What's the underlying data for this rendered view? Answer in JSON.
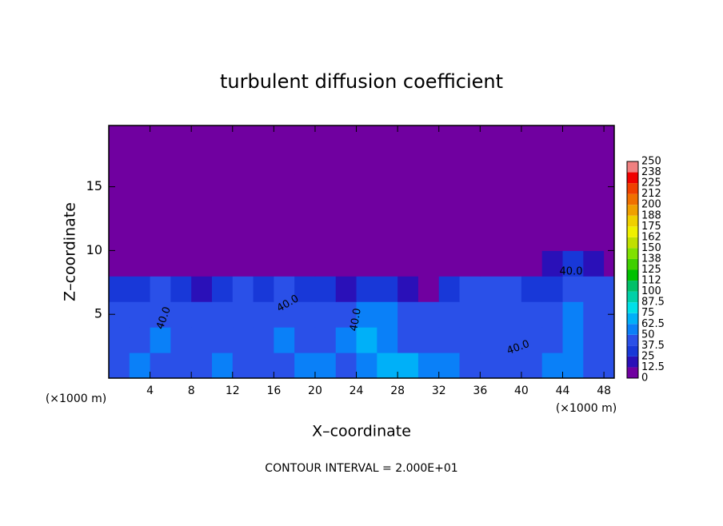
{
  "chart_data": {
    "type": "heatmap",
    "title": "turbulent diffusion coefficient",
    "xlabel": "X–coordinate",
    "ylabel": "Z–coordinate",
    "x_unit": "(×1000 m)",
    "footnote": "CONTOUR INTERVAL = 2.000E+01",
    "contour_labels": [
      "40.0",
      "40.0",
      "40.0",
      "40.0",
      "40.0"
    ],
    "xlim": [
      0,
      49
    ],
    "ylim": [
      0,
      19.8
    ],
    "xticks": [
      4,
      8,
      12,
      16,
      20,
      24,
      28,
      32,
      36,
      40,
      44,
      48
    ],
    "yticks": [
      5,
      10,
      15
    ],
    "x": [
      1,
      3,
      5,
      7,
      9,
      11,
      13,
      15,
      17,
      19,
      21,
      23,
      25,
      27,
      29,
      31,
      33,
      35,
      37,
      39,
      41,
      43,
      45,
      47,
      49
    ],
    "y": [
      1,
      3,
      5,
      7,
      9,
      11,
      13,
      15,
      17,
      19
    ],
    "z": [
      [
        45,
        50,
        45,
        40,
        48,
        55,
        45,
        40,
        45,
        50,
        52,
        48,
        60,
        70,
        65,
        55,
        50,
        45,
        48,
        45,
        42,
        55,
        60,
        45,
        48
      ],
      [
        40,
        45,
        55,
        45,
        42,
        48,
        40,
        45,
        50,
        45,
        42,
        50,
        65,
        60,
        45,
        40,
        45,
        42,
        40,
        45,
        48,
        45,
        55,
        42,
        45
      ],
      [
        38,
        45,
        40,
        42,
        48,
        40,
        45,
        42,
        45,
        40,
        45,
        42,
        55,
        50,
        45,
        40,
        45,
        40,
        45,
        42,
        45,
        40,
        50,
        42,
        45
      ],
      [
        35,
        30,
        40,
        35,
        20,
        30,
        40,
        35,
        40,
        35,
        30,
        15,
        25,
        30,
        20,
        10,
        35,
        40,
        40,
        38,
        30,
        35,
        40,
        40,
        38
      ],
      [
        5,
        5,
        5,
        5,
        5,
        5,
        5,
        5,
        5,
        5,
        5,
        5,
        5,
        5,
        5,
        5,
        5,
        5,
        5,
        5,
        8,
        20,
        25,
        15,
        10
      ],
      [
        5,
        5,
        5,
        5,
        5,
        5,
        5,
        5,
        5,
        5,
        5,
        5,
        5,
        5,
        5,
        5,
        5,
        5,
        5,
        5,
        5,
        5,
        5,
        5,
        5
      ],
      [
        5,
        5,
        5,
        5,
        5,
        5,
        5,
        5,
        5,
        5,
        5,
        5,
        5,
        5,
        5,
        5,
        5,
        5,
        5,
        5,
        5,
        5,
        5,
        5,
        5
      ],
      [
        5,
        5,
        5,
        5,
        5,
        5,
        5,
        5,
        5,
        5,
        5,
        5,
        5,
        5,
        5,
        5,
        5,
        5,
        5,
        5,
        5,
        5,
        5,
        5,
        5
      ],
      [
        5,
        5,
        5,
        5,
        5,
        5,
        5,
        5,
        5,
        5,
        5,
        5,
        5,
        5,
        5,
        5,
        5,
        5,
        5,
        5,
        5,
        5,
        5,
        5,
        5
      ],
      [
        5,
        5,
        5,
        5,
        5,
        5,
        5,
        5,
        5,
        5,
        5,
        5,
        5,
        5,
        5,
        5,
        5,
        5,
        5,
        5,
        5,
        5,
        5,
        5,
        5
      ]
    ],
    "colorbar": {
      "levels": [
        0,
        12.5,
        25,
        37.5,
        50,
        62.5,
        75,
        87.5,
        100,
        112,
        125,
        138,
        150,
        162,
        175,
        188,
        200,
        212,
        225,
        238,
        250
      ],
      "colors": [
        "#7000a0",
        "#2a10b8",
        "#1838d8",
        "#2a50e8",
        "#0a80f8",
        "#00b0f8",
        "#00e0e8",
        "#00d0a8",
        "#00c068",
        "#00c000",
        "#40d000",
        "#80e000",
        "#c0e000",
        "#f0f000",
        "#f0d000",
        "#f0a000",
        "#f07000",
        "#f04000",
        "#f00000",
        "#f08080"
      ]
    }
  }
}
